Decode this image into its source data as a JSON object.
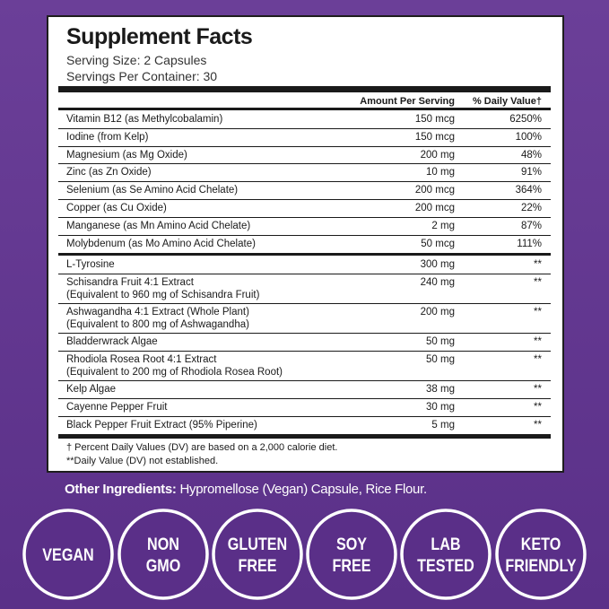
{
  "panel": {
    "title": "Supplement Facts",
    "serving_size": "Serving Size: 2 Capsules",
    "servings_per_container": "Servings Per Container: 30",
    "header": {
      "amount": "Amount Per Serving",
      "daily_value": "% Daily Value†"
    },
    "vitamins": [
      {
        "name": "Vitamin B12 (as Methylcobalamin)",
        "amount": "150 mcg",
        "dv": "6250%"
      },
      {
        "name": "Iodine (from Kelp)",
        "amount": "150 mcg",
        "dv": "100%"
      },
      {
        "name": "Magnesium (as Mg Oxide)",
        "amount": "200 mg",
        "dv": "48%"
      },
      {
        "name": "Zinc (as Zn Oxide)",
        "amount": "10 mg",
        "dv": "91%"
      },
      {
        "name": "Selenium (as Se Amino Acid Chelate)",
        "amount": "200 mcg",
        "dv": "364%"
      },
      {
        "name": "Copper (as Cu Oxide)",
        "amount": "200 mcg",
        "dv": "22%"
      },
      {
        "name": "Manganese (as Mn Amino Acid Chelate)",
        "amount": "2 mg",
        "dv": "87%"
      },
      {
        "name": "Molybdenum (as Mo Amino Acid Chelate)",
        "amount": "50 mcg",
        "dv": "111%"
      }
    ],
    "others": [
      {
        "name": "L-Tyrosine",
        "amount": "300 mg",
        "dv": "**"
      },
      {
        "name": "Schisandra Fruit 4:1 Extract",
        "note": "(Equivalent to 960 mg of Schisandra Fruit)",
        "amount": "240 mg",
        "dv": "**"
      },
      {
        "name": "Ashwagandha 4:1 Extract (Whole Plant)",
        "note": "(Equivalent to 800 mg of Ashwagandha)",
        "amount": "200 mg",
        "dv": "**"
      },
      {
        "name": "Bladderwrack Algae",
        "amount": "50 mg",
        "dv": "**"
      },
      {
        "name": "Rhodiola Rosea Root 4:1 Extract",
        "note": "(Equivalent to 200 mg of Rhodiola Rosea Root)",
        "amount": "50 mg",
        "dv": "**"
      },
      {
        "name": "Kelp Algae",
        "amount": "38 mg",
        "dv": "**"
      },
      {
        "name": "Cayenne Pepper Fruit",
        "amount": "30 mg",
        "dv": "**"
      },
      {
        "name": "Black Pepper Fruit Extract (95% Piperine)",
        "amount": "5 mg",
        "dv": "**"
      }
    ],
    "footnotes": [
      "† Percent Daily Values (DV) are based on a 2,000 calorie diet.",
      "**Daily Value (DV) not established."
    ]
  },
  "other_ingredients": {
    "label": "Other Ingredients:",
    "text": "Hypromellose (Vegan) Capsule, Rice Flour."
  },
  "badges": [
    [
      "VEGAN"
    ],
    [
      "NON",
      "GMO"
    ],
    [
      "GLUTEN",
      "FREE"
    ],
    [
      "SOY",
      "FREE"
    ],
    [
      "LAB",
      "TESTED"
    ],
    [
      "KETO",
      "FRIENDLY"
    ]
  ]
}
